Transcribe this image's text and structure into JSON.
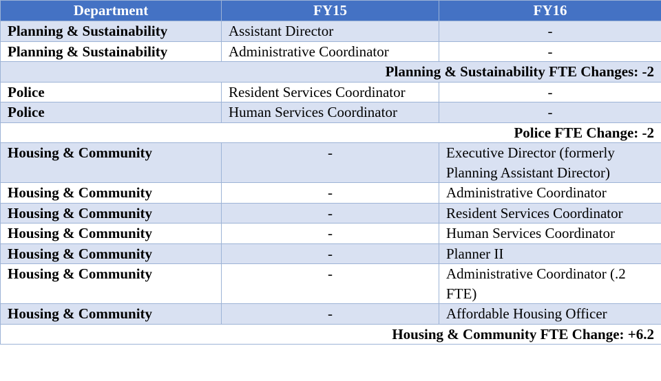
{
  "headers": [
    "Department",
    "FY15",
    "FY16"
  ],
  "rows": [
    {
      "dept": "Planning & Sustainability",
      "fy15": "Assistant Director",
      "fy16": "-"
    },
    {
      "dept": "Planning & Sustainability",
      "fy15": "Administrative Coordinator",
      "fy16": "-"
    },
    {
      "summary": "Planning & Sustainability FTE Changes: -2"
    },
    {
      "dept": "Police",
      "fy15": "Resident Services Coordinator",
      "fy16": "-"
    },
    {
      "dept": "Police",
      "fy15": "Human Services Coordinator",
      "fy16": "-"
    },
    {
      "summary": "Police FTE Change: -2"
    },
    {
      "dept": "Housing & Community",
      "fy15": "-",
      "fy16": "Executive Director (formerly Planning Assistant Director)"
    },
    {
      "dept": "Housing & Community",
      "fy15": "-",
      "fy16": "Administrative Coordinator"
    },
    {
      "dept": "Housing & Community",
      "fy15": "-",
      "fy16": "Resident Services Coordinator"
    },
    {
      "dept": "Housing & Community",
      "fy15": "-",
      "fy16": "Human Services Coordinator"
    },
    {
      "dept": "Housing & Community",
      "fy15": "-",
      "fy16": "Planner II"
    },
    {
      "dept": "Housing & Community",
      "fy15": "-",
      "fy16": "Administrative Coordinator (.2 FTE)"
    },
    {
      "dept": "Housing & Community",
      "fy15": "-",
      "fy16": "Affordable Housing Officer"
    },
    {
      "summary": "Housing & Community FTE Change: +6.2"
    }
  ]
}
